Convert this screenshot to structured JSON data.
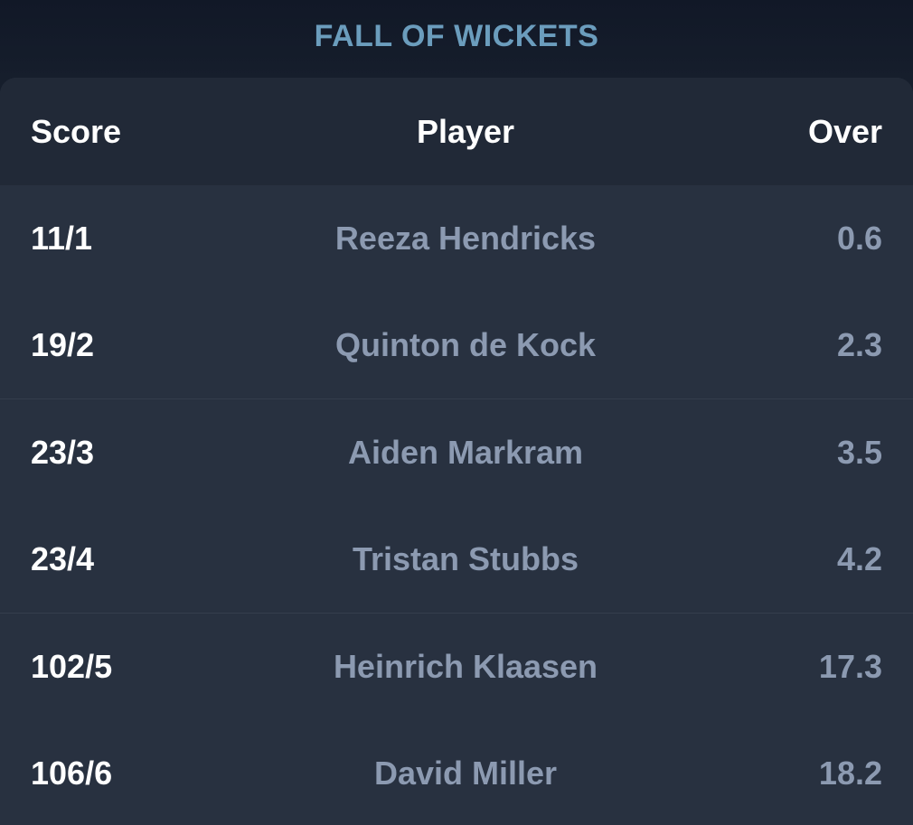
{
  "title": "FALL OF WICKETS",
  "headers": {
    "score": "Score",
    "player": "Player",
    "over": "Over"
  },
  "rows": [
    {
      "score": "11/1",
      "player": "Reeza Hendricks",
      "over": "0.6"
    },
    {
      "score": "19/2",
      "player": "Quinton de Kock",
      "over": "2.3"
    },
    {
      "score": "23/3",
      "player": "Aiden Markram",
      "over": "3.5"
    },
    {
      "score": "23/4",
      "player": "Tristan Stubbs",
      "over": "4.2"
    },
    {
      "score": "102/5",
      "player": "Heinrich Klaasen",
      "over": "17.3"
    },
    {
      "score": "106/6",
      "player": "David Miller",
      "over": "18.2"
    }
  ],
  "colors": {
    "title": "#6b9dbd",
    "card": "#283140",
    "header": "#212937",
    "muted_text": "#8c9ab1"
  }
}
